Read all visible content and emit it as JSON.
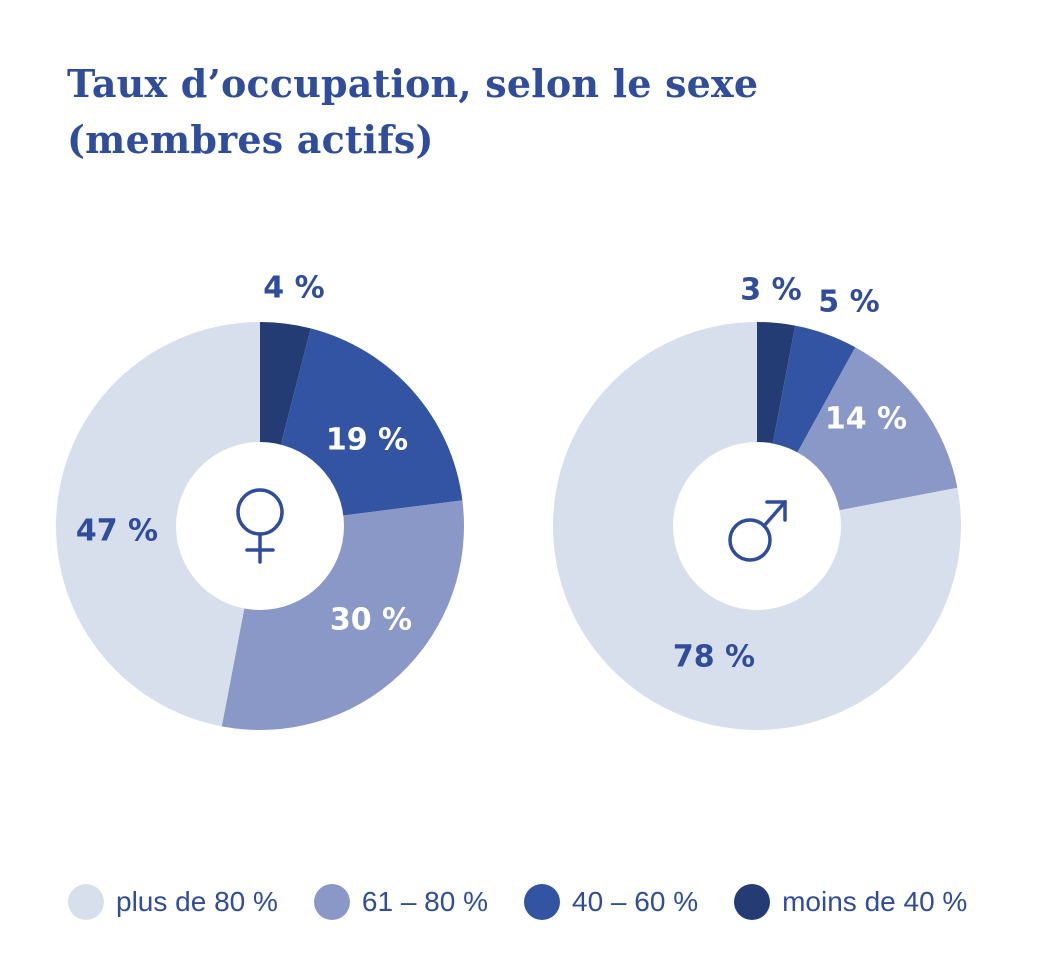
{
  "title": {
    "line1": "Taux d’occupation, selon le sexe",
    "line2": "(membres actifs)"
  },
  "colors": {
    "title": "#2f4d9b",
    "plus_de_80": "#d8dfec",
    "61_80": "#8a98c8",
    "40_60": "#3254a3",
    "moins_de_40": "#243c74",
    "label_dark": "#2f4d9b",
    "label_light": "#ffffff"
  },
  "legend": [
    {
      "label": "plus de 80 %",
      "color": "#d8dfec"
    },
    {
      "label": "61 – 80 %",
      "color": "#8a98c8"
    },
    {
      "label": "40 – 60 %",
      "color": "#3254a3"
    },
    {
      "label": "moins de 40 %",
      "color": "#243c74"
    }
  ],
  "chart_data": [
    {
      "type": "pie",
      "variant": "donut",
      "center_symbol": "♀",
      "center_icon": "female-symbol-icon",
      "categories": [
        "moins de 40 %",
        "40 – 60 %",
        "61 – 80 %",
        "plus de 80 %"
      ],
      "values": [
        4,
        19,
        30,
        47
      ],
      "labels": [
        "4 %",
        "19 %",
        "30 %",
        "47 %"
      ],
      "label_colors": [
        "#2f4d9b",
        "#ffffff",
        "#ffffff",
        "#2f4d9b"
      ],
      "start": "top",
      "direction": "clockwise"
    },
    {
      "type": "pie",
      "variant": "donut",
      "center_symbol": "♂",
      "center_icon": "male-symbol-icon",
      "categories": [
        "moins de 40 %",
        "40 – 60 %",
        "61 – 80 %",
        "plus de 80 %"
      ],
      "values": [
        3,
        5,
        14,
        78
      ],
      "labels": [
        "3 %",
        "5 %",
        "14 %",
        "78 %"
      ],
      "label_colors": [
        "#2f4d9b",
        "#2f4d9b",
        "#ffffff",
        "#2f4d9b"
      ],
      "start": "top",
      "direction": "clockwise"
    }
  ]
}
